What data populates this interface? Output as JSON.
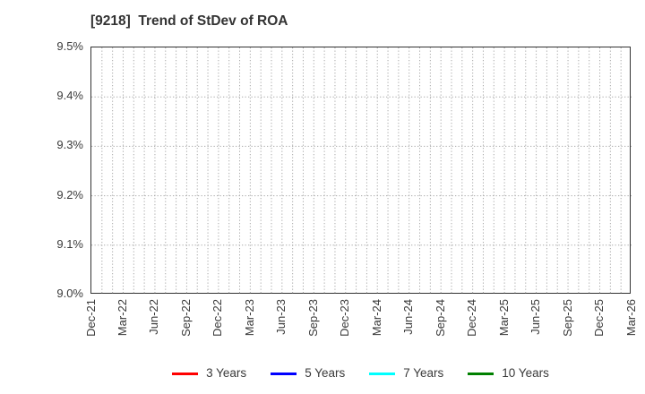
{
  "colors": {
    "text": "#3a3a3a",
    "title_text": "#333333",
    "plot_border": "#333333",
    "gridline": "#a9a9a9",
    "background": "#ffffff"
  },
  "chart_data": {
    "type": "line",
    "title": "[9218]  Trend of StDev of ROA",
    "xlabel": "",
    "ylabel": "",
    "ylim": [
      9.0,
      9.5
    ],
    "y_tick_labels": [
      "9.0%",
      "9.1%",
      "9.2%",
      "9.3%",
      "9.4%",
      "9.5%"
    ],
    "x_tick_labels": [
      "Dec-21",
      "Mar-22",
      "Jun-22",
      "Sep-22",
      "Dec-22",
      "Mar-23",
      "Jun-23",
      "Sep-23",
      "Dec-23",
      "Mar-24",
      "Jun-24",
      "Sep-24",
      "Dec-24",
      "Mar-25",
      "Jun-25",
      "Sep-25",
      "Dec-25",
      "Mar-26"
    ],
    "months_per_tick": 3,
    "total_month_intervals": 51,
    "grid": true,
    "grid_style": "dotted",
    "legend_position": "bottom-center",
    "series": [
      {
        "name": "3 Years",
        "color": "#ff0000",
        "values": []
      },
      {
        "name": "5 Years",
        "color": "#0000ff",
        "values": []
      },
      {
        "name": "7 Years",
        "color": "#00ffff",
        "values": []
      },
      {
        "name": "10 Years",
        "color": "#008000",
        "values": []
      }
    ]
  }
}
